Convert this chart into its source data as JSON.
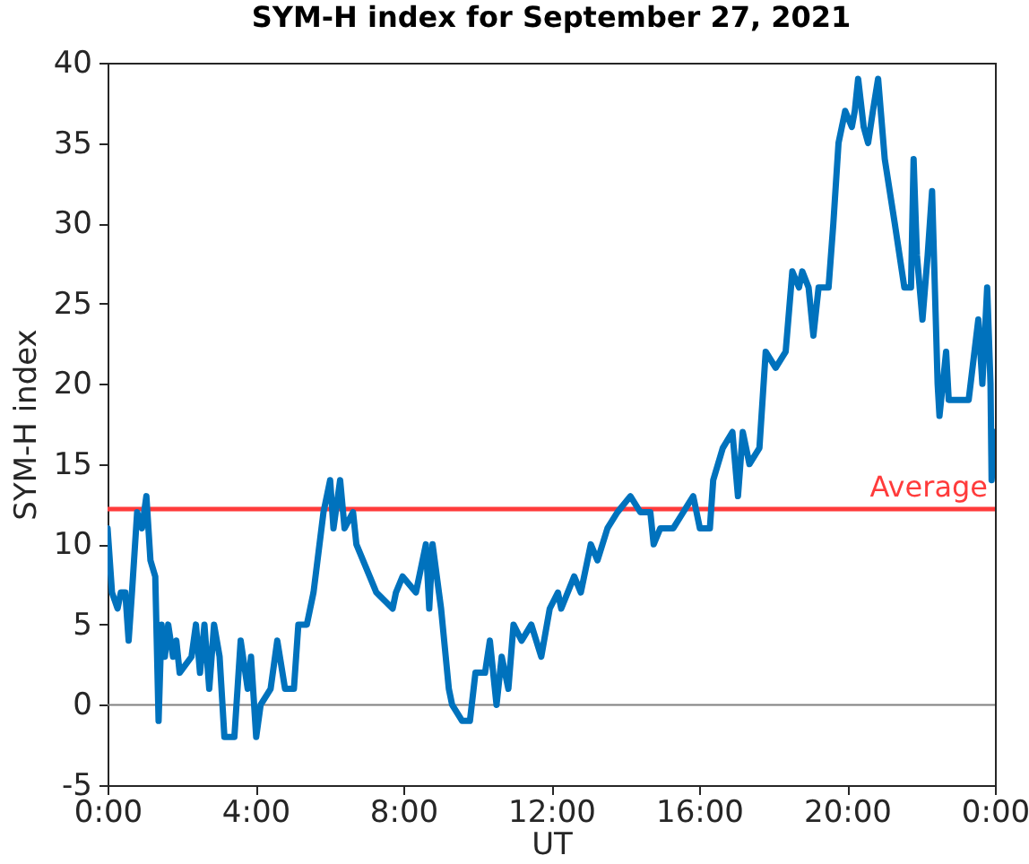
{
  "chart_data": {
    "type": "line",
    "title": "SYM-H index for September 27, 2021",
    "xlabel": "UT",
    "ylabel": "SYM-H index",
    "xlim": [
      0,
      24
    ],
    "xticks": [
      {
        "value": 0,
        "label": "0:00"
      },
      {
        "value": 4,
        "label": "4:00"
      },
      {
        "value": 8,
        "label": "8:00"
      },
      {
        "value": 12,
        "label": "12:00"
      },
      {
        "value": 16,
        "label": "16:00"
      },
      {
        "value": 20,
        "label": "20:00"
      },
      {
        "value": 24,
        "label": "0:00"
      }
    ],
    "ylim": [
      -5,
      40
    ],
    "yticks": [
      -5,
      0,
      5,
      10,
      15,
      20,
      25,
      30,
      35,
      40
    ],
    "grid": false,
    "ref_lines": [
      {
        "axis": "y",
        "value": 12.2,
        "label": "Average",
        "color": "#ff3b3b"
      },
      {
        "axis": "y",
        "value": 0,
        "color": "#808080"
      }
    ],
    "series": [
      {
        "color": "#0072bd",
        "x": [
          0,
          0.12,
          0.27,
          0.36,
          0.48,
          0.57,
          0.66,
          0.8,
          0.93,
          1.05,
          1.16,
          1.29,
          1.38,
          1.46,
          1.55,
          1.64,
          1.77,
          1.86,
          1.95,
          2.27,
          2.39,
          2.5,
          2.62,
          2.75,
          2.88,
          3.03,
          3.16,
          3.43,
          3.6,
          3.79,
          3.88,
          4.02,
          4.14,
          4.41,
          4.59,
          4.8,
          5.04,
          5.16,
          5.39,
          5.57,
          5.84,
          6.02,
          6.11,
          6.29,
          6.41,
          6.64,
          6.73,
          7.09,
          7.27,
          7.71,
          7.8,
          7.98,
          8.34,
          8.61,
          8.7,
          8.79,
          9.02,
          9.23,
          9.32,
          9.59,
          9.8,
          9.95,
          10.21,
          10.34,
          10.52,
          10.66,
          10.84,
          10.98,
          11.2,
          11.46,
          11.73,
          11.96,
          12.18,
          12.27,
          12.62,
          12.8,
          13.07,
          13.25,
          13.52,
          13.79,
          14.14,
          14.41,
          14.68,
          14.77,
          14.95,
          15.3,
          15.57,
          15.84,
          16.02,
          16.29,
          16.38,
          16.64,
          16.9,
          17.05,
          17.18,
          17.36,
          17.63,
          17.8,
          18.07,
          18.34,
          18.52,
          18.7,
          18.79,
          18.96,
          19.09,
          19.23,
          19.5,
          19.63,
          19.77,
          19.95,
          20.13,
          20.21,
          20.3,
          20.45,
          20.57,
          20.7,
          20.84,
          21.02,
          21.29,
          21.55,
          21.73,
          21.8,
          21.89,
          22.04,
          22.18,
          22.3,
          22.45,
          22.5,
          22.68,
          22.75,
          23.29,
          23.55,
          23.66,
          23.79,
          23.88,
          23.91,
          24
        ],
        "values": [
          11,
          7,
          6,
          7,
          7,
          4,
          7,
          12,
          11,
          13,
          9,
          8,
          -1,
          5,
          3,
          5,
          3,
          4,
          2,
          3,
          5,
          2,
          5,
          1,
          5,
          3,
          -2,
          -2,
          4,
          1,
          3,
          -2,
          0,
          1,
          4,
          1,
          1,
          5,
          5,
          7,
          12,
          14,
          11,
          14,
          11,
          12,
          10,
          8,
          7,
          6,
          7,
          8,
          7,
          10,
          6,
          10,
          6,
          1,
          0,
          -1,
          -1,
          2,
          2,
          4,
          0,
          3,
          1,
          5,
          4,
          5,
          3,
          6,
          7,
          6,
          8,
          7,
          10,
          9,
          11,
          12,
          13,
          12,
          12,
          10,
          11,
          11,
          12,
          13,
          11,
          11,
          14,
          16,
          17,
          13,
          17,
          15,
          16,
          22,
          21,
          22,
          27,
          26,
          27,
          26,
          23,
          26,
          26,
          30,
          35,
          37,
          36,
          37,
          39,
          36,
          35,
          37,
          39,
          34,
          30,
          26,
          26,
          34,
          28,
          24,
          28,
          32,
          20,
          18,
          22,
          19,
          19,
          24,
          20,
          26,
          20,
          14,
          17
        ]
      }
    ]
  }
}
